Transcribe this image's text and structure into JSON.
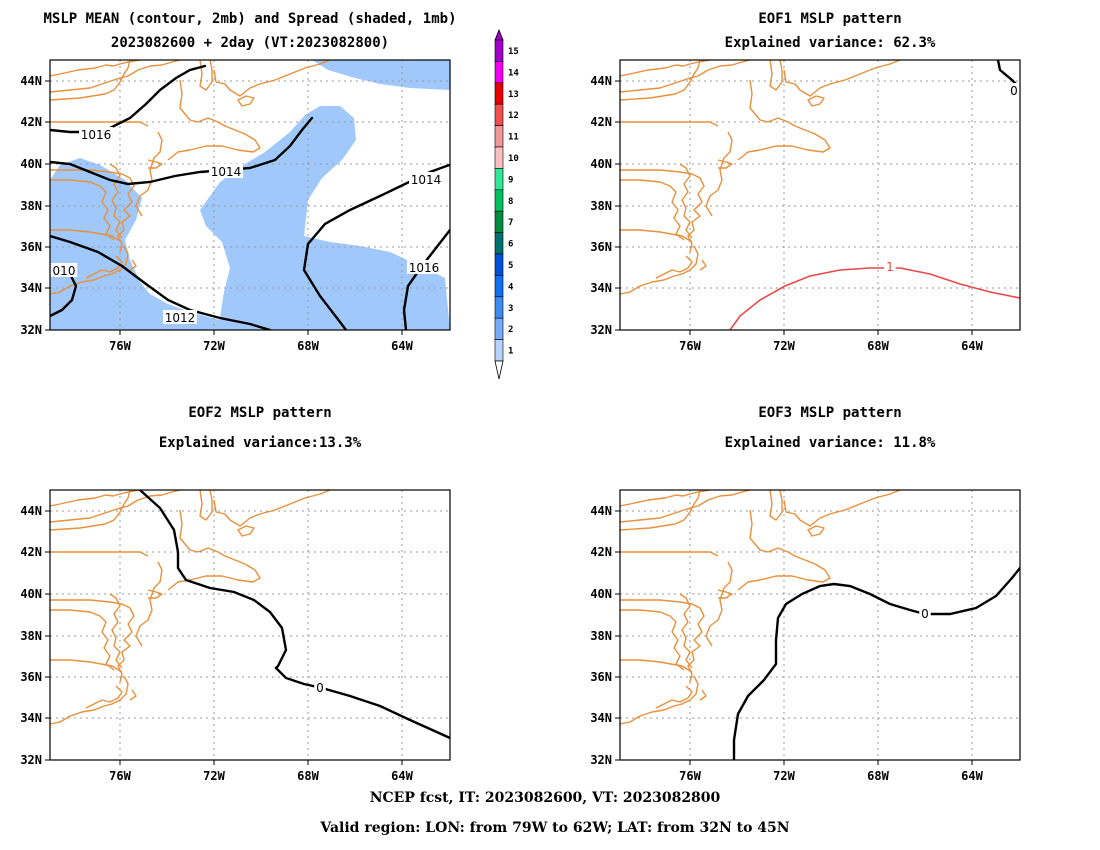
{
  "panels": [
    {
      "id": "mean",
      "title_line1": "MSLP MEAN (contour, 2mb) and Spread (shaded, 1mb)",
      "title_line2": "2023082600 + 2day (VT:2023082800)",
      "contour_labels": [
        "1016",
        "1014",
        "1014",
        "010",
        "1012",
        "1016"
      ]
    },
    {
      "id": "eof1",
      "title_line1": "EOF1 MSLP pattern",
      "title_line2": "Explained variance: 62.3%",
      "contour_labels": [
        "0",
        "1"
      ]
    },
    {
      "id": "eof2",
      "title_line1": "EOF2 MSLP pattern",
      "title_line2": "Explained variance:13.3%",
      "contour_labels": [
        "0"
      ]
    },
    {
      "id": "eof3",
      "title_line1": "EOF3 MSLP pattern",
      "title_line2": "Explained variance: 11.8%",
      "contour_labels": [
        "0"
      ]
    }
  ],
  "axes": {
    "lat_ticks": [
      "44N",
      "42N",
      "40N",
      "38N",
      "36N",
      "34N",
      "32N"
    ],
    "lon_ticks": [
      "76W",
      "72W",
      "68W",
      "64W"
    ]
  },
  "colorbar": {
    "labels": [
      "15",
      "14",
      "13",
      "12",
      "11",
      "10",
      "9",
      "8",
      "7",
      "6",
      "5",
      "4",
      "3",
      "2",
      "1"
    ],
    "colors": [
      "#a000c8",
      "#f000f0",
      "#e80000",
      "#f05050",
      "#f09898",
      "#f8c0c0",
      "#30e898",
      "#00c060",
      "#008c40",
      "#007070",
      "#0050d8",
      "#1070f0",
      "#3c8cf0",
      "#78aaf8",
      "#b8d4fa"
    ]
  },
  "footer": {
    "line1": "NCEP fcst, IT: 2023082600, VT: 2023082800",
    "line2": "Valid region: LON: from 79W to 62W; LAT: from 32N to 45N"
  },
  "colors": {
    "coastline": "#e8903c",
    "spread_shade": "#a0c8fa",
    "positive_contour": "#e84848",
    "contour": "#000000"
  }
}
